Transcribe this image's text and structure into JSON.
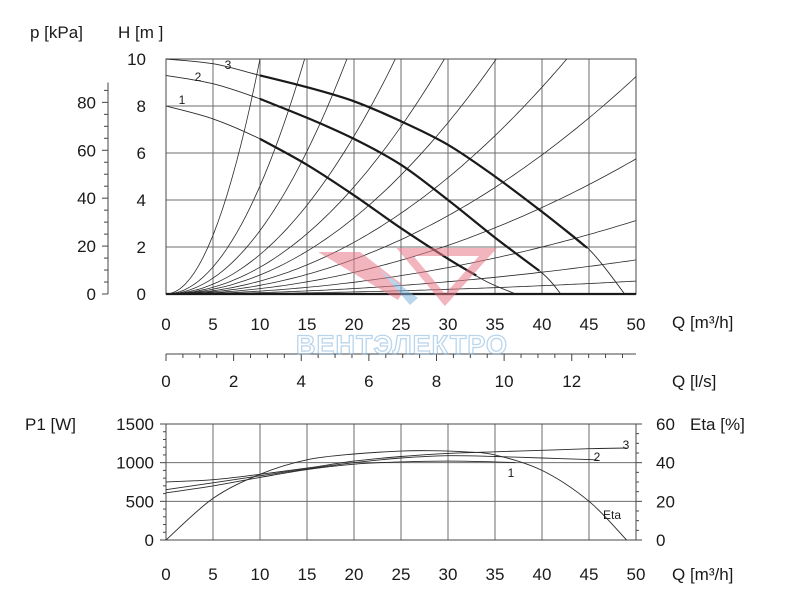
{
  "chart_data": [
    {
      "type": "line",
      "title": "",
      "axes": {
        "left_outer_label": "p [kPa]",
        "left_inner_label": "H [m ]",
        "bottom_label": "Q [m³/h]",
        "secondary_bottom_label": "Q [l/s]"
      },
      "xlim": [
        0,
        50
      ],
      "ylim": [
        0,
        10
      ],
      "pressure_lim": [
        0,
        98.1
      ],
      "x_ticks": [
        "0",
        "5",
        "10",
        "15",
        "20",
        "25",
        "30",
        "35",
        "40",
        "45",
        "50"
      ],
      "y_ticks_H": [
        "0",
        "2",
        "4",
        "6",
        "8",
        "10"
      ],
      "y_ticks_p": [
        "0",
        "20",
        "40",
        "60",
        "80"
      ],
      "ls_lim": [
        0,
        13.9
      ],
      "ls_ticks": [
        "0",
        "2",
        "4",
        "6",
        "8",
        "10",
        "12"
      ],
      "grid": true,
      "series": [
        {
          "name": "1",
          "x": [
            0,
            5,
            10,
            15,
            20,
            25,
            30,
            34,
            37.2
          ],
          "y": [
            8.0,
            7.45,
            6.6,
            5.5,
            4.2,
            2.8,
            1.5,
            0.55,
            0
          ]
        },
        {
          "name": "2",
          "x": [
            0,
            5,
            10,
            15,
            20,
            25,
            30,
            35,
            40,
            42
          ],
          "y": [
            9.3,
            8.95,
            8.3,
            7.5,
            6.6,
            5.5,
            4.0,
            2.4,
            0.9,
            0
          ]
        },
        {
          "name": "3",
          "x": [
            0,
            5,
            10,
            15,
            20,
            25,
            30,
            35,
            40,
            45,
            48.8
          ],
          "y": [
            10.0,
            9.8,
            9.3,
            8.8,
            8.2,
            7.35,
            6.35,
            5.0,
            3.5,
            1.9,
            0
          ]
        }
      ],
      "system_curve_coefficients": [
        0.1,
        0.046,
        0.027,
        0.0168,
        0.0114,
        0.0081,
        0.0055,
        0.0037,
        0.0023,
        0.00125,
        0.00058,
        0.00022
      ],
      "labels": [
        "1",
        "2",
        "3"
      ]
    },
    {
      "type": "line",
      "title": "",
      "axes": {
        "left_label": "P1 [W]",
        "right_label": "Eta [%]",
        "bottom_label": "Q [m³/h]"
      },
      "xlim": [
        0,
        50
      ],
      "ylim": [
        0,
        1500
      ],
      "eta_lim": [
        0,
        60
      ],
      "x_ticks": [
        "0",
        "5",
        "10",
        "15",
        "20",
        "25",
        "30",
        "35",
        "40",
        "45",
        "50"
      ],
      "y_ticks_P1": [
        "0",
        "500",
        "1000",
        "1500"
      ],
      "y_ticks_eta": [
        "0",
        "20",
        "40",
        "60"
      ],
      "grid": true,
      "series": [
        {
          "name": "1",
          "x": [
            0,
            5,
            10,
            15,
            20,
            25,
            30,
            35,
            37.2
          ],
          "y": [
            610,
            700,
            810,
            910,
            980,
            1010,
            1020,
            1010,
            1000
          ]
        },
        {
          "name": "2",
          "x": [
            0,
            5,
            10,
            15,
            20,
            25,
            30,
            35,
            40,
            45,
            46
          ],
          "y": [
            650,
            740,
            830,
            920,
            1000,
            1060,
            1090,
            1080,
            1060,
            1040,
            1030
          ]
        },
        {
          "name": "3",
          "x": [
            0,
            5,
            10,
            15,
            20,
            25,
            30,
            35,
            40,
            45,
            49
          ],
          "y": [
            750,
            780,
            850,
            930,
            1020,
            1080,
            1120,
            1140,
            1160,
            1180,
            1190
          ]
        },
        {
          "name": "Eta",
          "x": [
            0,
            5,
            10,
            15,
            20,
            25,
            28,
            32,
            35,
            40,
            45,
            49
          ],
          "y": [
            0,
            21.5,
            34,
            41.5,
            44.5,
            46,
            46.2,
            45.5,
            44,
            36,
            20,
            0
          ]
        }
      ],
      "labels": [
        "1",
        "2",
        "3",
        "Eta"
      ]
    }
  ],
  "watermark": {
    "text": "ВЕНТЭЛЕКТРО",
    "colors": [
      "#e8798a",
      "#7fb3dd"
    ]
  }
}
